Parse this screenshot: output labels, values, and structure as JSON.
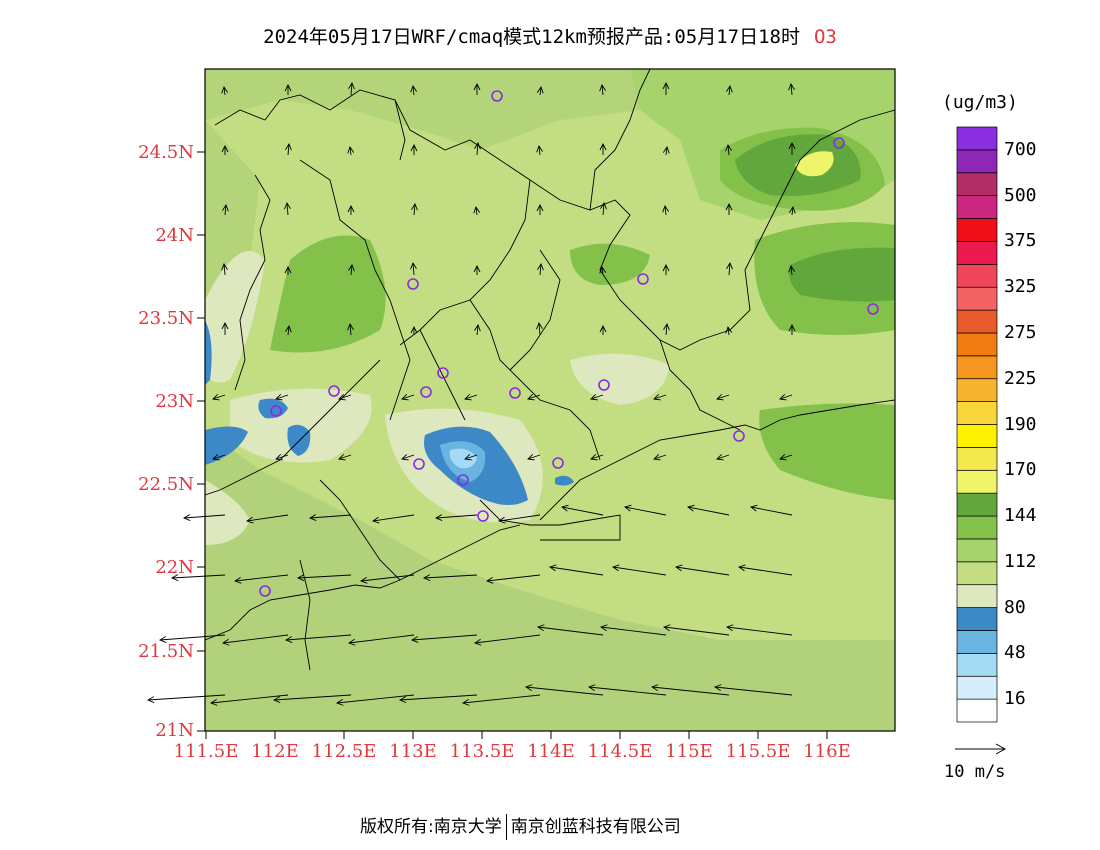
{
  "title": {
    "text": "2024年05月17日WRF/cmaq模式12km预报产品:05月17日18时",
    "species": "O3"
  },
  "axes": {
    "lat_ticks": [
      "21N",
      "21.5N",
      "22N",
      "22.5N",
      "23N",
      "23.5N",
      "24N",
      "24.5N"
    ],
    "lon_ticks": [
      "111.5E",
      "112E",
      "112.5E",
      "113E",
      "113.5E",
      "114E",
      "114.5E",
      "115E",
      "115.5E",
      "116E"
    ]
  },
  "colorbar": {
    "unit": "(ug/m3)",
    "labels": [
      "16",
      "48",
      "80",
      "112",
      "144",
      "170",
      "190",
      "225",
      "275",
      "325",
      "375",
      "500",
      "700"
    ],
    "colors": [
      "#ffffff",
      "#d6eefb",
      "#a5daf4",
      "#6ab4e2",
      "#3d88c6",
      "#dde8be",
      "#c3dd83",
      "#a6d36b",
      "#83c14a",
      "#62a73b",
      "#eff56a",
      "#f3e84e",
      "#fff200",
      "#f9d53a",
      "#f7b42e",
      "#f6951f",
      "#f17d12",
      "#e95a2d",
      "#f16365",
      "#f0465a",
      "#eb1a4e",
      "#ef0f18",
      "#cb2781",
      "#b22d65",
      "#8d28b6",
      "#8c2fe1"
    ]
  },
  "wind_legend": {
    "label": "10 m/s"
  },
  "footer": {
    "owner": "版权所有:南京大学",
    "partner": "南京创蓝科技有限公司"
  },
  "colors": {
    "axis_label": "#e0383e",
    "field_base": "#c3dd83",
    "field_sea": "#b2d17b",
    "station_marker": "#8a2be2"
  }
}
